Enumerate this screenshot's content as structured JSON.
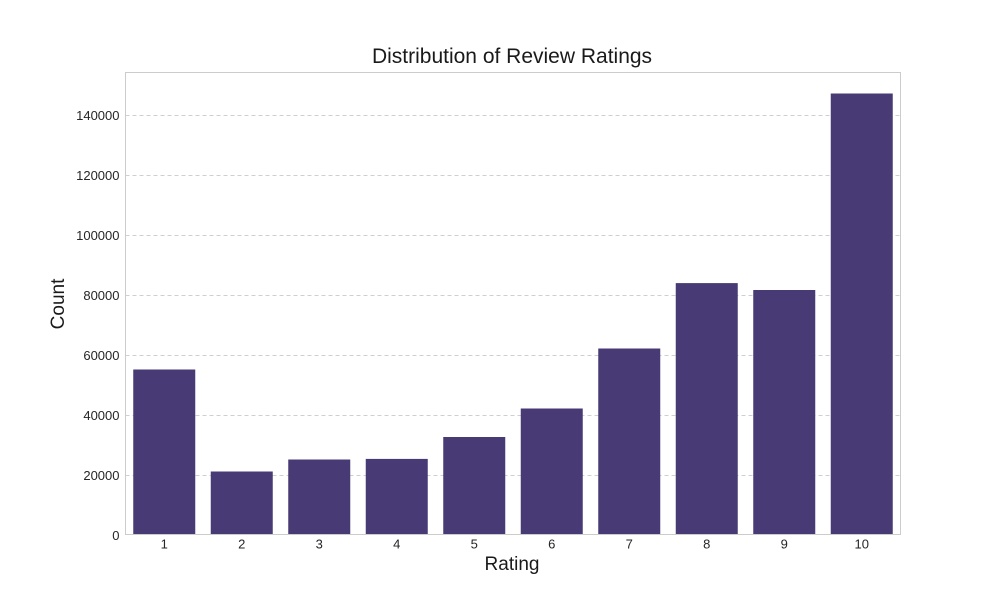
{
  "chart_data": {
    "type": "bar",
    "title": "Distribution of Review Ratings",
    "xlabel": "Rating",
    "ylabel": "Count",
    "categories": [
      "1",
      "2",
      "3",
      "4",
      "5",
      "6",
      "7",
      "8",
      "9",
      "10"
    ],
    "values": [
      55000,
      21000,
      25000,
      25200,
      32500,
      42000,
      62000,
      83800,
      81500,
      147000
    ],
    "ylim": [
      0,
      154000
    ],
    "yticks": [
      0,
      20000,
      40000,
      60000,
      80000,
      100000,
      120000,
      140000
    ],
    "grid": "y-dashed",
    "colors": {
      "bar": "#483a75",
      "grid": "#cfcfcf",
      "frame": "#cccccc",
      "text": "#262626"
    }
  }
}
